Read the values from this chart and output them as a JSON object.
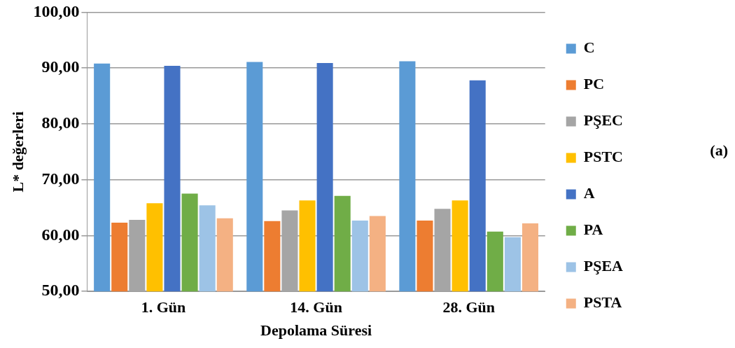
{
  "chart_data": {
    "type": "bar",
    "categories": [
      "1. Gün",
      "14. Gün",
      "28. Gün"
    ],
    "series": [
      {
        "name": "C",
        "color": "#5b9bd5",
        "values": [
          90.8,
          91.1,
          91.2
        ]
      },
      {
        "name": "PC",
        "color": "#ed7d31",
        "values": [
          62.3,
          62.6,
          62.7
        ]
      },
      {
        "name": "PŞEC",
        "color": "#a5a5a5",
        "values": [
          62.8,
          64.5,
          64.8
        ]
      },
      {
        "name": "PSTC",
        "color": "#ffc000",
        "values": [
          65.8,
          66.3,
          66.3
        ]
      },
      {
        "name": "A",
        "color": "#4472c4",
        "values": [
          90.4,
          90.9,
          87.8
        ]
      },
      {
        "name": "PA",
        "color": "#70ad47",
        "values": [
          67.5,
          67.1,
          60.7
        ]
      },
      {
        "name": "PŞEA",
        "color": "#9dc3e6",
        "values": [
          65.4,
          62.7,
          59.7
        ]
      },
      {
        "name": "PSTA",
        "color": "#f4b183",
        "values": [
          63.1,
          63.5,
          62.2
        ]
      }
    ],
    "ylim": [
      50,
      100
    ],
    "yticks": [
      {
        "value": 50,
        "label": "50,00"
      },
      {
        "value": 60,
        "label": "60,00"
      },
      {
        "value": 70,
        "label": "70,00"
      },
      {
        "value": 80,
        "label": "80,00"
      },
      {
        "value": 90,
        "label": "90,00"
      },
      {
        "value": 100,
        "label": "100,00"
      }
    ],
    "xlabel": "Depolama Süresi",
    "ylabel": "L* değerleri",
    "legend": "right",
    "grid": "y",
    "annotations": [
      "(a)"
    ]
  }
}
